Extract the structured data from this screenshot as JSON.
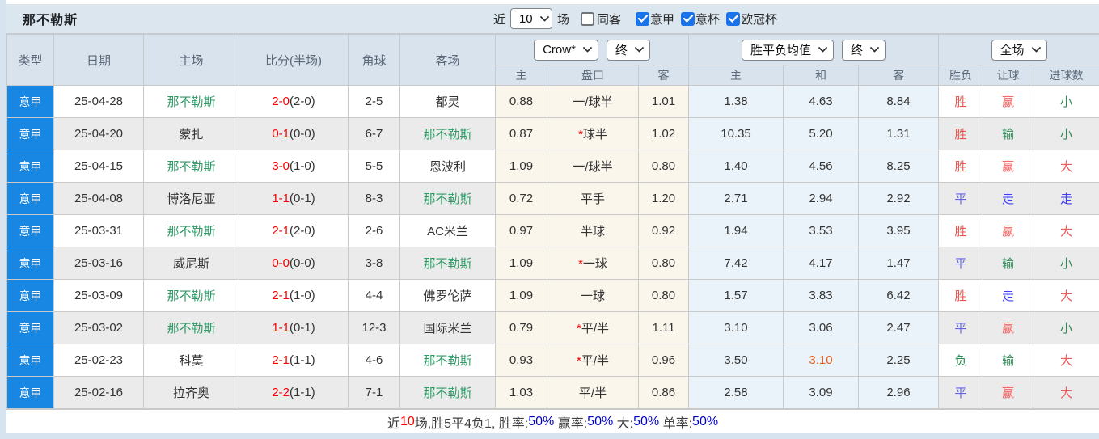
{
  "topbar": {
    "title": "那不勒斯",
    "recent_label": "近",
    "recent_value": "10",
    "unit_label": "场",
    "checkboxes": [
      {
        "label": "同客",
        "checked": false
      },
      {
        "label": "意甲",
        "checked": true
      },
      {
        "label": "意杯",
        "checked": true
      },
      {
        "label": "欧冠杯",
        "checked": true
      }
    ]
  },
  "header": {
    "cols": [
      "类型",
      "日期",
      "主场",
      "比分(半场)",
      "角球",
      "客场"
    ],
    "dropdowns": {
      "odds_source": "Crow*",
      "odds_period": "终",
      "avg_source": "胜平负均值",
      "avg_period": "终",
      "scope": "全场"
    },
    "sub": [
      "主",
      "盘口",
      "客",
      "主",
      "和",
      "客",
      "胜负",
      "让球",
      "进球数"
    ]
  },
  "result_colors": {
    "red": "#ef5555",
    "green": "#2e8b57",
    "blue": "#6666e0",
    "blue2": "#3c3cf0"
  },
  "rows": [
    {
      "league": "意甲",
      "date": "25-04-28",
      "home": "那不勒斯",
      "home_self": true,
      "score": "2-0",
      "half": "(2-0)",
      "corners": "2-5",
      "away": "都灵",
      "away_self": false,
      "odds_home": "0.88",
      "handicap": "一/球半",
      "handicap_star": false,
      "odds_away": "1.01",
      "avg_home": "1.38",
      "avg_draw": "4.63",
      "avg_away": "8.84",
      "avg_draw_hot": false,
      "results": [
        {
          "t": "胜",
          "c": "red"
        },
        {
          "t": "赢",
          "c": "red"
        },
        {
          "t": "小",
          "c": "green"
        }
      ]
    },
    {
      "league": "意甲",
      "date": "25-04-20",
      "home": "蒙扎",
      "home_self": false,
      "score": "0-1",
      "half": "(0-0)",
      "corners": "6-7",
      "away": "那不勒斯",
      "away_self": true,
      "odds_home": "0.87",
      "handicap": "球半",
      "handicap_star": true,
      "odds_away": "1.02",
      "avg_home": "10.35",
      "avg_draw": "5.20",
      "avg_away": "1.31",
      "avg_draw_hot": false,
      "results": [
        {
          "t": "胜",
          "c": "red"
        },
        {
          "t": "输",
          "c": "green"
        },
        {
          "t": "小",
          "c": "green"
        }
      ]
    },
    {
      "league": "意甲",
      "date": "25-04-15",
      "home": "那不勒斯",
      "home_self": true,
      "score": "3-0",
      "half": "(1-0)",
      "corners": "5-5",
      "away": "恩波利",
      "away_self": false,
      "odds_home": "1.09",
      "handicap": "一/球半",
      "handicap_star": false,
      "odds_away": "0.80",
      "avg_home": "1.40",
      "avg_draw": "4.56",
      "avg_away": "8.25",
      "avg_draw_hot": false,
      "results": [
        {
          "t": "胜",
          "c": "red"
        },
        {
          "t": "赢",
          "c": "red"
        },
        {
          "t": "大",
          "c": "red"
        }
      ]
    },
    {
      "league": "意甲",
      "date": "25-04-08",
      "home": "博洛尼亚",
      "home_self": false,
      "score": "1-1",
      "half": "(0-1)",
      "corners": "8-3",
      "away": "那不勒斯",
      "away_self": true,
      "odds_home": "0.72",
      "handicap": "平手",
      "handicap_star": false,
      "odds_away": "1.20",
      "avg_home": "2.71",
      "avg_draw": "2.94",
      "avg_away": "2.92",
      "avg_draw_hot": false,
      "results": [
        {
          "t": "平",
          "c": "blue"
        },
        {
          "t": "走",
          "c": "blue2"
        },
        {
          "t": "走",
          "c": "blue2"
        }
      ]
    },
    {
      "league": "意甲",
      "date": "25-03-31",
      "home": "那不勒斯",
      "home_self": true,
      "score": "2-1",
      "half": "(2-0)",
      "corners": "2-6",
      "away": "AC米兰",
      "away_self": false,
      "odds_home": "0.97",
      "handicap": "半球",
      "handicap_star": false,
      "odds_away": "0.92",
      "avg_home": "1.94",
      "avg_draw": "3.53",
      "avg_away": "3.95",
      "avg_draw_hot": false,
      "results": [
        {
          "t": "胜",
          "c": "red"
        },
        {
          "t": "赢",
          "c": "red"
        },
        {
          "t": "大",
          "c": "red"
        }
      ]
    },
    {
      "league": "意甲",
      "date": "25-03-16",
      "home": "威尼斯",
      "home_self": false,
      "score": "0-0",
      "half": "(0-0)",
      "corners": "3-8",
      "away": "那不勒斯",
      "away_self": true,
      "odds_home": "1.09",
      "handicap": "一球",
      "handicap_star": true,
      "odds_away": "0.80",
      "avg_home": "7.42",
      "avg_draw": "4.17",
      "avg_away": "1.47",
      "avg_draw_hot": false,
      "results": [
        {
          "t": "平",
          "c": "blue"
        },
        {
          "t": "输",
          "c": "green"
        },
        {
          "t": "小",
          "c": "green"
        }
      ]
    },
    {
      "league": "意甲",
      "date": "25-03-09",
      "home": "那不勒斯",
      "home_self": true,
      "score": "2-1",
      "half": "(1-0)",
      "corners": "4-4",
      "away": "佛罗伦萨",
      "away_self": false,
      "odds_home": "1.09",
      "handicap": "一球",
      "handicap_star": false,
      "odds_away": "0.80",
      "avg_home": "1.57",
      "avg_draw": "3.83",
      "avg_away": "6.42",
      "avg_draw_hot": false,
      "results": [
        {
          "t": "胜",
          "c": "red"
        },
        {
          "t": "走",
          "c": "blue2"
        },
        {
          "t": "大",
          "c": "red"
        }
      ]
    },
    {
      "league": "意甲",
      "date": "25-03-02",
      "home": "那不勒斯",
      "home_self": true,
      "score": "1-1",
      "half": "(0-1)",
      "corners": "12-3",
      "away": "国际米兰",
      "away_self": false,
      "odds_home": "0.79",
      "handicap": "平/半",
      "handicap_star": true,
      "odds_away": "1.11",
      "avg_home": "3.10",
      "avg_draw": "3.06",
      "avg_away": "2.47",
      "avg_draw_hot": false,
      "results": [
        {
          "t": "平",
          "c": "blue"
        },
        {
          "t": "赢",
          "c": "red"
        },
        {
          "t": "小",
          "c": "green"
        }
      ]
    },
    {
      "league": "意甲",
      "date": "25-02-23",
      "home": "科莫",
      "home_self": false,
      "score": "2-1",
      "half": "(1-1)",
      "corners": "4-6",
      "away": "那不勒斯",
      "away_self": true,
      "odds_home": "0.93",
      "handicap": "平/半",
      "handicap_star": true,
      "odds_away": "0.96",
      "avg_home": "3.50",
      "avg_draw": "3.10",
      "avg_away": "2.25",
      "avg_draw_hot": true,
      "results": [
        {
          "t": "负",
          "c": "green"
        },
        {
          "t": "输",
          "c": "green"
        },
        {
          "t": "大",
          "c": "red"
        }
      ]
    },
    {
      "league": "意甲",
      "date": "25-02-16",
      "home": "拉齐奥",
      "home_self": false,
      "score": "2-2",
      "half": "(1-1)",
      "corners": "7-1",
      "away": "那不勒斯",
      "away_self": true,
      "odds_home": "1.03",
      "handicap": "平/半",
      "handicap_star": false,
      "odds_away": "0.86",
      "avg_home": "2.58",
      "avg_draw": "3.09",
      "avg_away": "2.96",
      "avg_draw_hot": false,
      "results": [
        {
          "t": "平",
          "c": "blue"
        },
        {
          "t": "赢",
          "c": "red"
        },
        {
          "t": "大",
          "c": "red"
        }
      ]
    }
  ],
  "summary": {
    "segments": [
      {
        "text": "近",
        "c": "dark"
      },
      {
        "text": "10",
        "c": "red"
      },
      {
        "text": "场,胜5平4负1, ",
        "c": "dark"
      },
      {
        "text": "胜率:",
        "c": "dark"
      },
      {
        "text": "50%",
        "c": "blue"
      },
      {
        "text": " 赢率:",
        "c": "dark"
      },
      {
        "text": "50%",
        "c": "blue"
      },
      {
        "text": " 大:",
        "c": "dark"
      },
      {
        "text": "50%",
        "c": "blue"
      },
      {
        "text": " 单率:",
        "c": "dark"
      },
      {
        "text": "50%",
        "c": "blue"
      }
    ]
  }
}
